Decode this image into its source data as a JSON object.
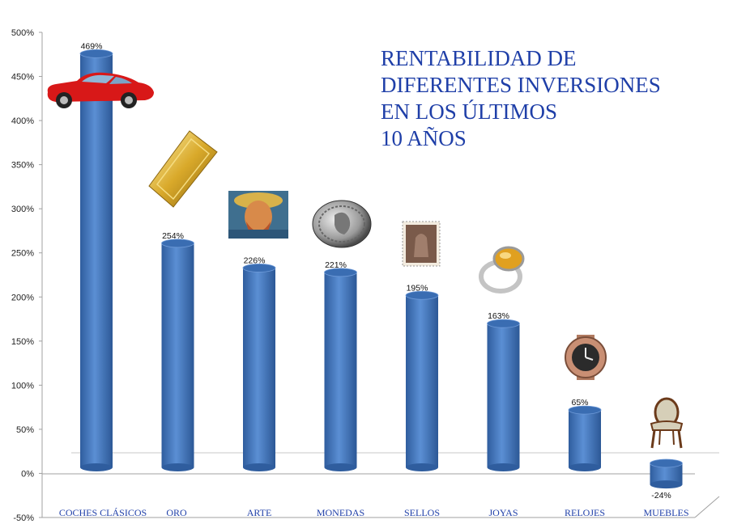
{
  "chart_data": {
    "type": "bar",
    "title_lines": [
      "RENTABILIDAD DE",
      "DIFERENTES INVERSIONES",
      "EN LOS ÚLTIMOS",
      "10 AÑOS"
    ],
    "categories": [
      "COCHES CLÁSICOS",
      "ORO",
      "ARTE",
      "MONEDAS",
      "SELLOS",
      "JOYAS",
      "RELOJES",
      "MUEBLES"
    ],
    "values": [
      469,
      254,
      226,
      221,
      195,
      163,
      65,
      -24
    ],
    "value_labels": [
      "469%",
      "254%",
      "226%",
      "221%",
      "195%",
      "163%",
      "65%",
      "-24%"
    ],
    "y_ticks": [
      "500%",
      "450%",
      "400%",
      "350%",
      "300%",
      "250%",
      "200%",
      "150%",
      "100%",
      "50%",
      "0%",
      "-50%"
    ],
    "ylim": [
      -50,
      500
    ],
    "xlabel": "",
    "ylabel": "",
    "grid": false,
    "legend": "none",
    "bar_color": "#4a7cc1",
    "title_color": "#1f3fa8",
    "category_label_color": "#1f3fa8",
    "category_icons": [
      "red-classic-car-icon",
      "gold-bar-icon",
      "van-gogh-portrait-icon",
      "silver-coin-icon",
      "postage-stamp-icon",
      "gold-ring-icon",
      "luxury-watch-icon",
      "antique-chair-icon"
    ]
  }
}
